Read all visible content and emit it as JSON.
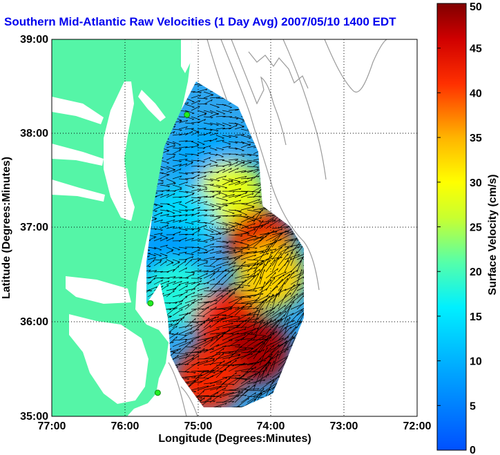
{
  "chart_data": {
    "type": "heatmap",
    "title": "Southern Mid-Atlantic Raw Velocities (1 Day Avg) 2007/05/10 1400 EDT",
    "xlabel": "Longitude (Degrees:Minutes)",
    "ylabel": "Latitude (Degrees:Minutes)",
    "x_ticks": [
      "77:00",
      "76:00",
      "75:00",
      "74:00",
      "73:00",
      "72:00"
    ],
    "y_ticks": [
      "39:00",
      "38:00",
      "37:00",
      "36:00",
      "35:00"
    ],
    "xlim": [
      -77,
      -72
    ],
    "ylim": [
      35,
      39
    ],
    "grid": true,
    "colorbar": {
      "label": "Surface Velocity (cm/s)",
      "min": 0,
      "max": 50,
      "ticks": [
        "0",
        "5",
        "10",
        "15",
        "20",
        "25",
        "30",
        "35",
        "40",
        "45",
        "50"
      ]
    },
    "colors": {
      "land": "#55f5a7",
      "bathymetry": "#9a9a9a",
      "station": "#22ee22",
      "vector": "#000000",
      "title": "#0000ee"
    },
    "radar_stations": [
      {
        "lon": -75.15,
        "lat": 38.2
      },
      {
        "lon": -75.65,
        "lat": 36.2
      },
      {
        "lon": -75.55,
        "lat": 35.25
      }
    ],
    "velocity_regions": [
      {
        "lon": -74.9,
        "lat": 37.75,
        "value": 9
      },
      {
        "lon": -74.55,
        "lat": 37.35,
        "value": 28
      },
      {
        "lon": -75.2,
        "lat": 37.1,
        "value": 14
      },
      {
        "lon": -74.15,
        "lat": 36.85,
        "value": 44
      },
      {
        "lon": -75.4,
        "lat": 36.7,
        "value": 8
      },
      {
        "lon": -74.0,
        "lat": 36.5,
        "value": 33
      },
      {
        "lon": -75.3,
        "lat": 36.3,
        "value": 18
      },
      {
        "lon": -74.6,
        "lat": 36.0,
        "value": 43
      },
      {
        "lon": -74.2,
        "lat": 35.7,
        "value": 48
      },
      {
        "lon": -74.85,
        "lat": 35.4,
        "value": 42
      }
    ]
  }
}
